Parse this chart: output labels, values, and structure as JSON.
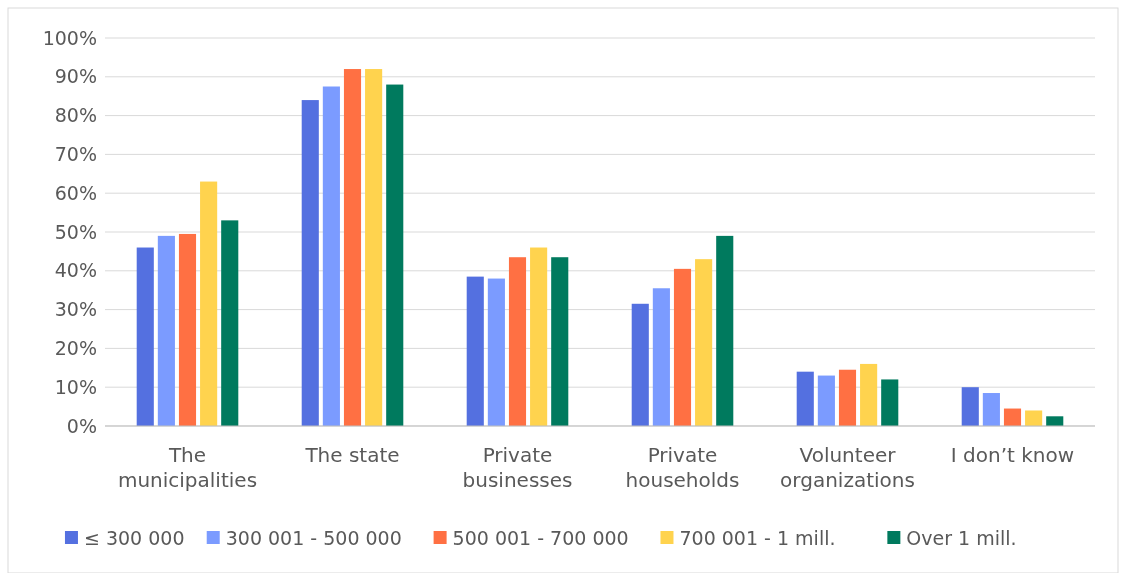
{
  "chart_data": {
    "type": "bar",
    "categories": [
      "The municipalities",
      "The state",
      "Private businesses",
      "Private households",
      "Volunteer organizations",
      "I don’t know"
    ],
    "series": [
      {
        "name": "≤ 300 000",
        "color": "#5470e0",
        "values": [
          46,
          84,
          38.5,
          31.5,
          14,
          10
        ]
      },
      {
        "name": "300 001 - 500 000",
        "color": "#7b9bff",
        "values": [
          49,
          87.5,
          38,
          35.5,
          13,
          8.5
        ]
      },
      {
        "name": "500 001 - 700 000",
        "color": "#ff7043",
        "values": [
          49.5,
          92,
          43.5,
          40.5,
          14.5,
          4.5
        ]
      },
      {
        "name": "700 001 - 1 mill.",
        "color": "#ffd34e",
        "values": [
          63,
          92,
          46,
          43,
          16,
          4
        ]
      },
      {
        "name": "Over 1 mill.",
        "color": "#007a5e",
        "values": [
          53,
          88,
          43.5,
          49,
          12,
          2.5
        ]
      }
    ],
    "ylim": [
      0,
      100
    ],
    "yticks": [
      {
        "value": 0,
        "label": "0%"
      },
      {
        "value": 10,
        "label": "10%"
      },
      {
        "value": 20,
        "label": "20%"
      },
      {
        "value": 30,
        "label": "30%"
      },
      {
        "value": 40,
        "label": "40%"
      },
      {
        "value": 50,
        "label": "50%"
      },
      {
        "value": 60,
        "label": "60%"
      },
      {
        "value": 70,
        "label": "70%"
      },
      {
        "value": 80,
        "label": "80%"
      },
      {
        "value": 90,
        "label": "90%"
      },
      {
        "value": 100,
        "label": "100%"
      }
    ],
    "grid": "y",
    "legend": "bottom"
  }
}
